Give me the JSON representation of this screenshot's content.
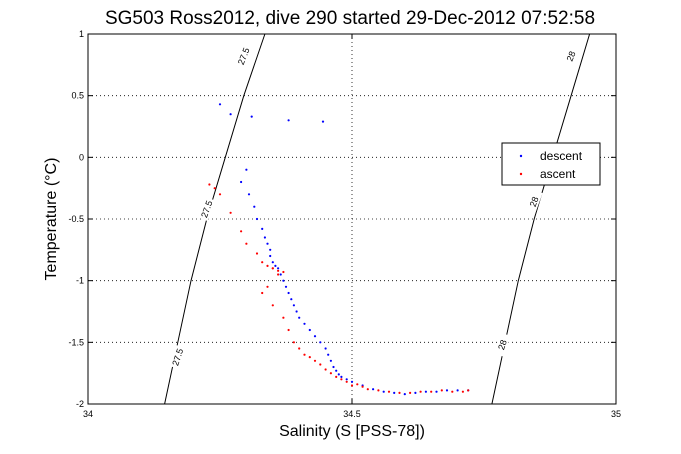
{
  "chart_data": {
    "type": "scatter",
    "title": "SG503 Ross2012, dive 290 started 29-Dec-2012 07:52:58",
    "xlabel": "Salinity (S [PSS-78])",
    "ylabel": "Temperature (°C)",
    "xlim": [
      34,
      35
    ],
    "ylim": [
      -2,
      1
    ],
    "xticks": [
      "34",
      "34.5",
      "35"
    ],
    "yticks": [
      "-2",
      "-1.5",
      "-1",
      "-0.5",
      "0",
      "0.5",
      "1"
    ],
    "grid": true,
    "legend_position": "right",
    "contours": [
      {
        "label": "27.5",
        "points": [
          [
            34.145,
            -2.0
          ],
          [
            34.17,
            -1.5
          ],
          [
            34.195,
            -1.0
          ],
          [
            34.225,
            -0.5
          ],
          [
            34.26,
            0.0
          ],
          [
            34.295,
            0.5
          ],
          [
            34.335,
            1.0
          ]
        ]
      },
      {
        "label": "28",
        "points": [
          [
            34.765,
            -2.0
          ],
          [
            34.79,
            -1.5
          ],
          [
            34.815,
            -1.0
          ],
          [
            34.845,
            -0.5
          ],
          [
            34.88,
            0.0
          ],
          [
            34.915,
            0.5
          ],
          [
            34.95,
            1.0
          ]
        ]
      }
    ],
    "contour_labels": [
      {
        "text": "27.5",
        "x": 34.295,
        "y": 0.82,
        "angle": -68
      },
      {
        "text": "27.5",
        "x": 34.225,
        "y": -0.42,
        "angle": -70
      },
      {
        "text": "27.5",
        "x": 34.17,
        "y": -1.62,
        "angle": -72
      },
      {
        "text": "28",
        "x": 34.915,
        "y": 0.82,
        "angle": -68
      },
      {
        "text": "28",
        "x": 34.845,
        "y": -0.36,
        "angle": -70
      },
      {
        "text": "28",
        "x": 34.785,
        "y": -1.52,
        "angle": -72
      }
    ],
    "series": [
      {
        "name": "descent",
        "color": "#0000ff",
        "x": [
          34.25,
          34.27,
          34.31,
          34.38,
          34.445,
          34.3,
          34.29,
          34.305,
          34.315,
          34.32,
          34.33,
          34.335,
          34.34,
          34.345,
          34.345,
          34.35,
          34.355,
          34.36,
          34.365,
          34.37,
          34.375,
          34.38,
          34.385,
          34.39,
          34.395,
          34.4,
          34.41,
          34.42,
          34.43,
          34.44,
          34.45,
          34.455,
          34.46,
          34.465,
          34.47,
          34.475,
          34.48,
          34.49,
          34.5,
          34.52,
          34.54,
          34.56,
          34.58,
          34.6,
          34.62,
          34.64,
          34.66,
          34.68,
          34.7,
          34.72
        ],
        "y": [
          0.43,
          0.35,
          0.33,
          0.3,
          0.29,
          -0.1,
          -0.2,
          -0.3,
          -0.4,
          -0.5,
          -0.58,
          -0.65,
          -0.7,
          -0.75,
          -0.8,
          -0.85,
          -0.88,
          -0.9,
          -0.95,
          -1.0,
          -1.05,
          -1.1,
          -1.15,
          -1.2,
          -1.25,
          -1.3,
          -1.35,
          -1.4,
          -1.45,
          -1.5,
          -1.55,
          -1.6,
          -1.65,
          -1.7,
          -1.73,
          -1.76,
          -1.78,
          -1.8,
          -1.82,
          -1.85,
          -1.88,
          -1.9,
          -1.91,
          -1.92,
          -1.91,
          -1.9,
          -1.9,
          -1.89,
          -1.89,
          -1.89
        ]
      },
      {
        "name": "ascent",
        "color": "#ff0000",
        "x": [
          34.24,
          34.23,
          34.25,
          34.27,
          34.29,
          34.3,
          34.32,
          34.33,
          34.34,
          34.35,
          34.36,
          34.37,
          34.36,
          34.35,
          34.34,
          34.33,
          34.35,
          34.37,
          34.38,
          34.39,
          34.4,
          34.41,
          34.42,
          34.43,
          34.44,
          34.45,
          34.46,
          34.47,
          34.48,
          34.49,
          34.5,
          34.51,
          34.52,
          34.53,
          34.55,
          34.57,
          34.59,
          34.61,
          34.63,
          34.65,
          34.67,
          34.69,
          34.71,
          34.72
        ],
        "y": [
          -0.25,
          -0.22,
          -0.3,
          -0.45,
          -0.6,
          -0.7,
          -0.78,
          -0.85,
          -0.88,
          -0.9,
          -0.92,
          -0.93,
          -0.95,
          -0.9,
          -1.05,
          -1.1,
          -1.2,
          -1.3,
          -1.4,
          -1.5,
          -1.55,
          -1.6,
          -1.62,
          -1.65,
          -1.68,
          -1.72,
          -1.75,
          -1.78,
          -1.8,
          -1.82,
          -1.85,
          -1.84,
          -1.86,
          -1.88,
          -1.89,
          -1.9,
          -1.91,
          -1.91,
          -1.9,
          -1.9,
          -1.89,
          -1.9,
          -1.9,
          -1.89
        ]
      }
    ]
  }
}
